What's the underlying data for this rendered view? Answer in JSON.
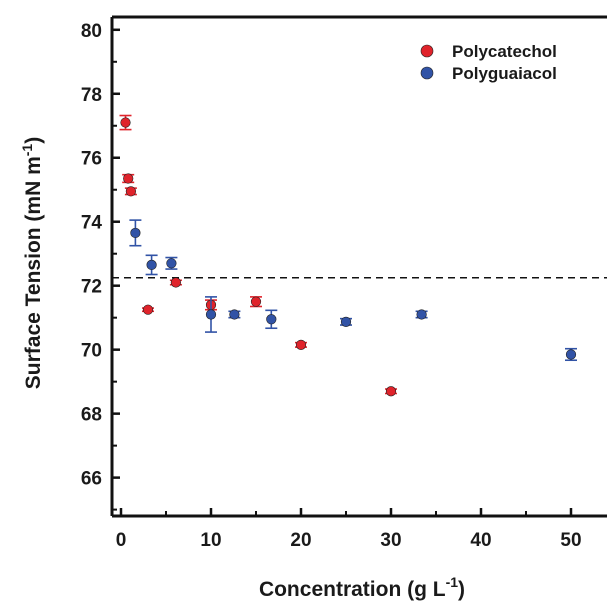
{
  "chart_data": {
    "type": "scatter",
    "title": "",
    "xlabel": "Concentration (g L",
    "xlabel_sup": "-1",
    "xlabel_tail": ")",
    "ylabel": "Surface Tension (mN m",
    "ylabel_sup": "-1",
    "ylabel_tail": ")",
    "xlim": [
      -1,
      54
    ],
    "ylim": [
      64.8,
      80.4
    ],
    "xticks": [
      0,
      10,
      20,
      30,
      40,
      50
    ],
    "xtick_labels": [
      "0",
      "10",
      "20",
      "30",
      "40",
      "50"
    ],
    "yticks": [
      66,
      68,
      70,
      72,
      74,
      76,
      78,
      80
    ],
    "ytick_labels": [
      "66",
      "68",
      "70",
      "72",
      "74",
      "76",
      "78",
      "80"
    ],
    "grid": false,
    "legend_position": "top-right",
    "reference_line": {
      "y": 72.25,
      "style": "dashed"
    },
    "series": [
      {
        "name": "Polycatechol",
        "color": "#e0232b",
        "points": [
          {
            "x": 0.5,
            "y": 77.1,
            "err": 0.22
          },
          {
            "x": 0.8,
            "y": 75.35,
            "err": 0.12
          },
          {
            "x": 1.1,
            "y": 74.95,
            "err": 0.1
          },
          {
            "x": 3.0,
            "y": 71.25,
            "err": 0.05
          },
          {
            "x": 6.1,
            "y": 72.1,
            "err": 0.07
          },
          {
            "x": 10.0,
            "y": 71.4,
            "err": 0.15
          },
          {
            "x": 15.0,
            "y": 71.5,
            "err": 0.15
          },
          {
            "x": 20.0,
            "y": 70.15,
            "err": 0.07
          },
          {
            "x": 30.0,
            "y": 68.7,
            "err": 0.07
          }
        ]
      },
      {
        "name": "Polyguaiacol",
        "color": "#3153a6",
        "points": [
          {
            "x": 1.6,
            "y": 73.65,
            "err": 0.4
          },
          {
            "x": 3.4,
            "y": 72.65,
            "err": 0.3
          },
          {
            "x": 5.6,
            "y": 72.7,
            "err": 0.18
          },
          {
            "x": 10.0,
            "y": 71.1,
            "err": 0.55
          },
          {
            "x": 12.6,
            "y": 71.1,
            "err": 0.1
          },
          {
            "x": 16.7,
            "y": 70.95,
            "err": 0.28
          },
          {
            "x": 25.0,
            "y": 70.87,
            "err": 0.1
          },
          {
            "x": 33.4,
            "y": 71.1,
            "err": 0.1
          },
          {
            "x": 50.0,
            "y": 69.85,
            "err": 0.18
          }
        ]
      }
    ]
  }
}
